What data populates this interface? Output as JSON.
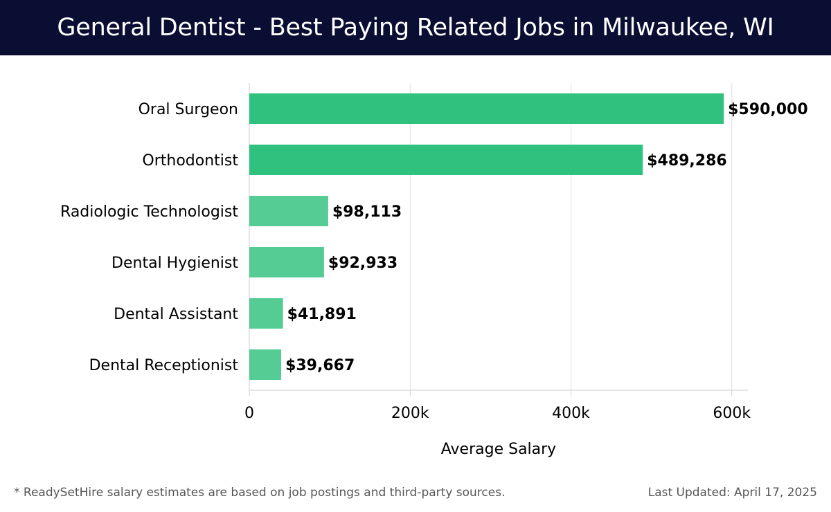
{
  "header": {
    "title": "General Dentist - Best Paying Related Jobs in Milwaukee, WI"
  },
  "chart_data": {
    "type": "bar",
    "orientation": "horizontal",
    "categories": [
      "Oral Surgeon",
      "Orthodontist",
      "Radiologic Technologist",
      "Dental Hygienist",
      "Dental Assistant",
      "Dental Receptionist"
    ],
    "values": [
      590000,
      489286,
      98113,
      92933,
      41891,
      39667
    ],
    "data_labels": [
      "$590,000",
      "$489,286",
      "$98,113",
      "$92,933",
      "$41,891",
      "$39,667"
    ],
    "xlabel": "Average Salary",
    "ylabel": "",
    "xlim": [
      0,
      620000
    ],
    "x_ticks": [
      0,
      200000,
      400000,
      600000
    ],
    "x_tick_labels": [
      "0",
      "200k",
      "400k",
      "600k"
    ],
    "grid": "vertical",
    "colors": {
      "high": "#2ec27e",
      "low": "#55cc94",
      "grid": "#e0e0e0",
      "axis": "#cccccc"
    },
    "high_threshold": 400000
  },
  "footer": {
    "note": "* ReadySetHire salary estimates are based on job postings and third-party sources.",
    "updated": "Last Updated: April 17, 2025"
  }
}
